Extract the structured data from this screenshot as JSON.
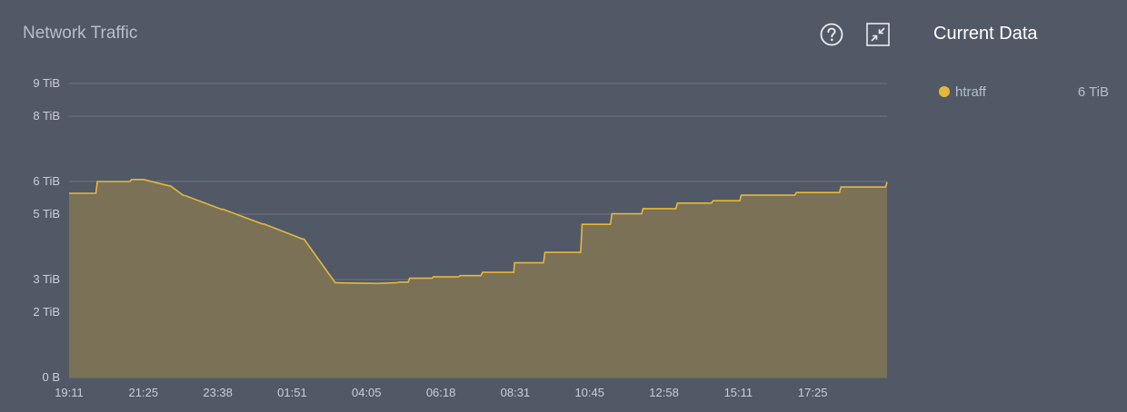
{
  "panel": {
    "title": "Network Traffic",
    "help_icon": "help-circle-icon",
    "shrink_icon": "collapse-icon"
  },
  "side": {
    "title": "Current Data",
    "legend": [
      {
        "name": "htraff",
        "value": "6 TiB",
        "color": "#e6b73c"
      }
    ]
  },
  "chart_data": {
    "type": "area",
    "title": "Network Traffic",
    "xlabel": "",
    "ylabel": "",
    "ylim": [
      0,
      9
    ],
    "grid": true,
    "y_ticks": [
      {
        "value": 0,
        "label": "0 B"
      },
      {
        "value": 2,
        "label": "2 TiB"
      },
      {
        "value": 3,
        "label": "3 TiB"
      },
      {
        "value": 5,
        "label": "5 TiB"
      },
      {
        "value": 6,
        "label": "6 TiB"
      },
      {
        "value": 8,
        "label": "8 TiB"
      },
      {
        "value": 9,
        "label": "9 TiB"
      }
    ],
    "x_ticks": [
      "19:11",
      "21:25",
      "23:38",
      "01:51",
      "04:05",
      "06:18",
      "08:31",
      "10:45",
      "12:58",
      "15:11",
      "17:25"
    ],
    "series": [
      {
        "name": "htraff",
        "color": "#e6b73c",
        "fill": "#7a7156",
        "x": [
          0,
          0.36,
          0.38,
          0.82,
          0.84,
          1.0,
          1.34,
          1.36,
          1.54,
          1.56,
          2.05,
          2.07,
          2.6,
          2.62,
          3.14,
          3.16,
          3.58,
          3.6,
          4.14,
          4.16,
          4.4,
          4.44,
          4.56,
          4.58,
          4.88,
          4.9,
          5.24,
          5.26,
          5.54,
          5.56,
          5.98,
          5.99,
          6.38,
          6.4,
          6.88,
          6.9,
          7.28,
          7.3,
          7.7,
          7.72,
          8.16,
          8.18,
          8.64,
          8.66,
          9.02,
          9.04,
          9.76,
          9.78,
          10.36,
          10.38,
          10.98,
          11.0
        ],
        "values": [
          5.64,
          5.64,
          6.0,
          6.0,
          6.06,
          6.06,
          5.87,
          5.87,
          5.57,
          5.57,
          5.15,
          5.15,
          4.7,
          4.7,
          4.24,
          4.24,
          2.9,
          2.9,
          2.88,
          2.88,
          2.9,
          2.92,
          2.92,
          3.04,
          3.04,
          3.08,
          3.08,
          3.12,
          3.12,
          3.22,
          3.22,
          3.51,
          3.51,
          3.83,
          3.83,
          4.69,
          4.69,
          5.01,
          5.01,
          5.17,
          5.17,
          5.34,
          5.34,
          5.41,
          5.41,
          5.58,
          5.58,
          5.66,
          5.66,
          5.83,
          5.83,
          5.98
        ]
      }
    ]
  }
}
